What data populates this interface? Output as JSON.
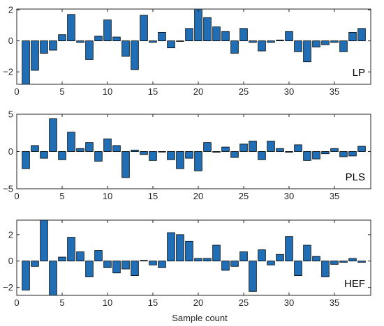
{
  "chart_data": [
    {
      "type": "bar",
      "name": "LP",
      "panel_label": "LP",
      "x": [
        1,
        2,
        3,
        4,
        5,
        6,
        7,
        8,
        9,
        10,
        11,
        12,
        13,
        14,
        15,
        16,
        17,
        18,
        19,
        20,
        21,
        22,
        23,
        24,
        25,
        26,
        27,
        28,
        29,
        30,
        31,
        32,
        33,
        34,
        35,
        36,
        37,
        38
      ],
      "values": [
        -2.8,
        -1.9,
        -0.8,
        -0.6,
        0.4,
        1.7,
        -0.1,
        -1.2,
        0.3,
        1.35,
        0.25,
        -1.0,
        -1.85,
        1.65,
        -0.1,
        0.55,
        -0.45,
        0.0,
        0.8,
        2.05,
        1.5,
        0.9,
        0.6,
        -0.8,
        0.8,
        -0.1,
        -0.65,
        -0.1,
        0.05,
        0.6,
        -0.7,
        -1.35,
        -0.4,
        -0.25,
        -0.1,
        -0.7,
        0.55,
        0.8
      ],
      "xlim": [
        0,
        39
      ],
      "ylim": [
        -2.8,
        2.05
      ],
      "xticks": [
        0,
        5,
        10,
        15,
        20,
        25,
        30,
        35
      ],
      "yticks": [
        -2,
        0,
        2
      ],
      "bar_color": "#1f6eb6"
    },
    {
      "type": "bar",
      "name": "PLS",
      "panel_label": "PLS",
      "x": [
        1,
        2,
        3,
        4,
        5,
        6,
        7,
        8,
        9,
        10,
        11,
        12,
        13,
        14,
        15,
        16,
        17,
        18,
        19,
        20,
        21,
        22,
        23,
        24,
        25,
        26,
        27,
        28,
        29,
        30,
        31,
        32,
        33,
        34,
        35,
        36,
        37,
        38
      ],
      "values": [
        -2.3,
        0.8,
        -0.9,
        4.4,
        -1.1,
        2.6,
        0.4,
        1.2,
        -1.3,
        1.7,
        0.8,
        -3.5,
        0.2,
        -0.4,
        -1.2,
        0.0,
        -1.1,
        -2.3,
        -0.9,
        -2.6,
        1.2,
        -0.1,
        0.6,
        -0.8,
        1.0,
        1.4,
        -1.1,
        1.4,
        0.4,
        -0.1,
        0.9,
        -1.2,
        -1.0,
        -0.3,
        0.4,
        -0.7,
        -0.6,
        0.7
      ],
      "xlim": [
        0,
        39
      ],
      "ylim": [
        -5,
        5
      ],
      "xticks": [
        0,
        5,
        10,
        15,
        20,
        25,
        30,
        35
      ],
      "yticks": [
        -5,
        0,
        5
      ],
      "bar_color": "#1f6eb6"
    },
    {
      "type": "bar",
      "name": "HEF",
      "panel_label": "HEF",
      "x": [
        1,
        2,
        3,
        4,
        5,
        6,
        7,
        8,
        9,
        10,
        11,
        12,
        13,
        14,
        15,
        16,
        17,
        18,
        19,
        20,
        21,
        22,
        23,
        24,
        25,
        26,
        27,
        28,
        29,
        30,
        31,
        32,
        33,
        34,
        35,
        36,
        37,
        38
      ],
      "values": [
        -2.2,
        -0.4,
        3.1,
        -2.6,
        0.3,
        1.8,
        0.7,
        -1.2,
        0.8,
        -0.5,
        -0.9,
        -0.6,
        -1.1,
        0.05,
        -0.3,
        -0.5,
        2.15,
        2.0,
        1.5,
        0.2,
        0.2,
        1.2,
        -0.7,
        -0.4,
        0.7,
        -2.3,
        0.85,
        -0.3,
        0.5,
        1.85,
        -1.1,
        1.2,
        0.35,
        -1.2,
        -0.25,
        -0.1,
        0.2,
        -0.1
      ],
      "xlim": [
        0,
        39
      ],
      "ylim": [
        -2.6,
        3.1
      ],
      "xticks": [
        0,
        5,
        10,
        15,
        20,
        25,
        30,
        35
      ],
      "yticks": [
        -2,
        0,
        2
      ],
      "bar_color": "#1f6eb6",
      "xlabel": "Sample count"
    }
  ]
}
